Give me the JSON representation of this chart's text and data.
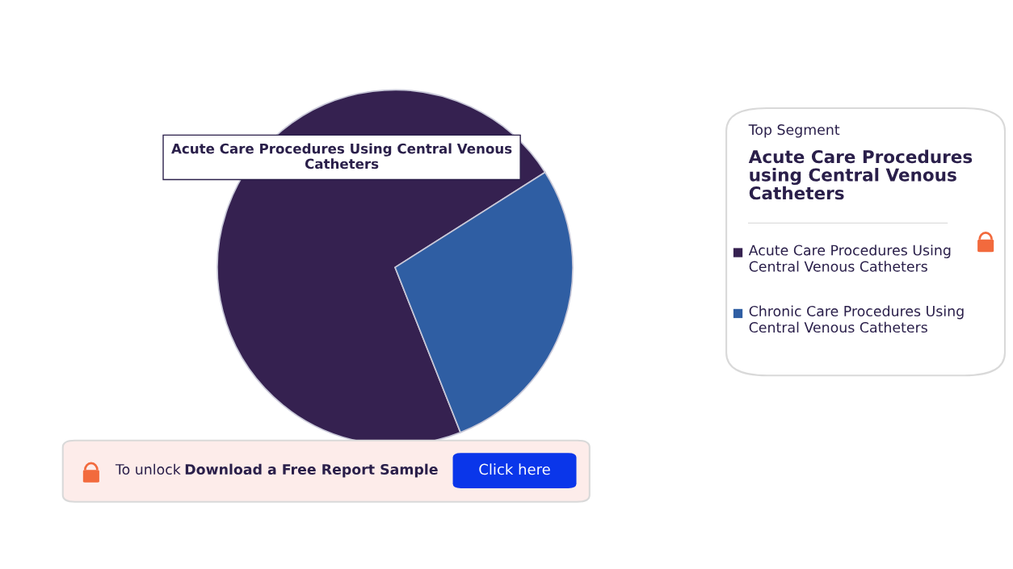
{
  "chart_data": {
    "type": "pie",
    "categories": [
      "Acute Care Procedures Using Central Venous Catheters",
      "Chronic Care Procedures Using Central Venous Catheters"
    ],
    "values": [
      72,
      28
    ],
    "colors": [
      "#352150",
      "#2f5ea3"
    ],
    "legend": "right",
    "annotations": [
      "Acute Care Procedures Using Central Venous Catheters",
      "Top Segment",
      "Acute Care Procedures using Central Venous Catheters",
      "To unlock",
      "Download a Free Report Sample",
      "Click here"
    ]
  }
}
